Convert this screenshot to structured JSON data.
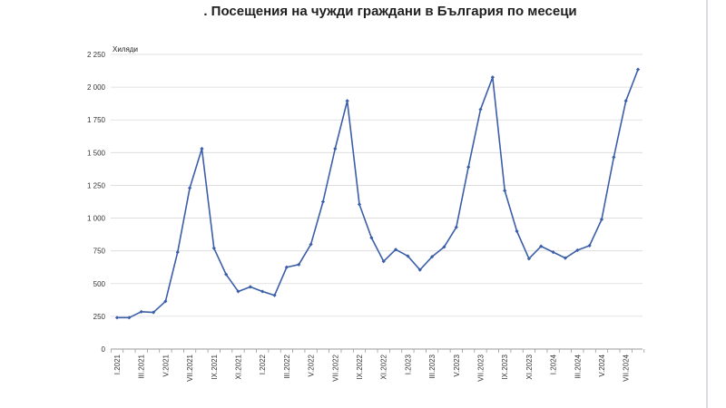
{
  "chart_data": {
    "type": "line",
    "title": ". Посещения на чужди граждани в България по месеци",
    "ylabel": "Хиляди",
    "xlabel": "",
    "ylim": [
      0,
      2250
    ],
    "yticks": [
      0,
      250,
      500,
      750,
      1000,
      1250,
      1500,
      1750,
      2000,
      2250
    ],
    "ytick_labels": [
      "0",
      "250",
      "500",
      "750",
      "1 000",
      "1 250",
      "1 500",
      "1 750",
      "2 000",
      "2 250"
    ],
    "grid": true,
    "legend": "none",
    "line_color": "#3b5ea8",
    "x": [
      "I.2021",
      "II.2021",
      "III.2021",
      "IV.2021",
      "V.2021",
      "VI.2021",
      "VII.2021",
      "VIII.2021",
      "IX.2021",
      "X.2021",
      "XI.2021",
      "XII.2021",
      "I.2022",
      "II.2022",
      "III.2022",
      "IV.2022",
      "V.2022",
      "VI.2022",
      "VII.2022",
      "VIII.2022",
      "IX.2022",
      "X.2022",
      "XI.2022",
      "XII.2022",
      "I.2023",
      "II.2023",
      "III.2023",
      "IV.2023",
      "V.2023",
      "VI.2023",
      "VII.2023",
      "VIII.2023",
      "IX.2023",
      "X.2023",
      "XI.2023",
      "XII.2023",
      "I.2024",
      "II.2024",
      "III.2024",
      "IV.2024",
      "V.2024",
      "VI.2024",
      "VII.2024",
      "VIII.2024"
    ],
    "tick_labels_shown": [
      "I.2021",
      "III.2021",
      "V.2021",
      "VII.2021",
      "IX.2021",
      "XI.2021",
      "I.2022",
      "III.2022",
      "V.2022",
      "VII.2022",
      "IX.2022",
      "XI.2022",
      "I.2023",
      "III.2023",
      "V.2023",
      "VII.2023",
      "IX.2023",
      "XI.2023",
      "I.2024",
      "III.2024",
      "V.2024",
      "VII.2024"
    ],
    "series": [
      {
        "values": [
          240,
          240,
          285,
          280,
          365,
          740,
          1230,
          1530,
          770,
          570,
          440,
          475,
          440,
          410,
          625,
          645,
          800,
          1125,
          1530,
          1895,
          1105,
          850,
          670,
          760,
          710,
          605,
          705,
          780,
          930,
          1390,
          1830,
          2075,
          1210,
          900,
          690,
          785,
          740,
          695,
          755,
          790,
          990,
          1465,
          1895,
          2135
        ]
      }
    ]
  }
}
